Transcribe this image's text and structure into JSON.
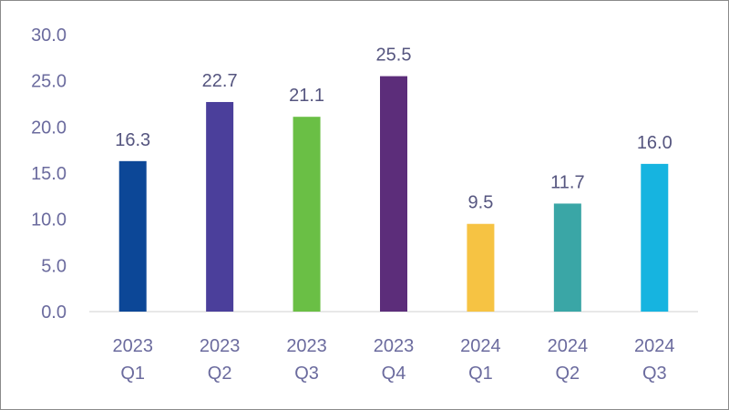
{
  "chart_data": {
    "type": "bar",
    "categories": [
      [
        "2023",
        "Q1"
      ],
      [
        "2023",
        "Q2"
      ],
      [
        "2023",
        "Q3"
      ],
      [
        "2023",
        "Q4"
      ],
      [
        "2024",
        "Q1"
      ],
      [
        "2024",
        "Q2"
      ],
      [
        "2024",
        "Q3"
      ]
    ],
    "values": [
      16.3,
      22.7,
      21.1,
      25.5,
      9.5,
      11.7,
      16.0
    ],
    "value_labels": [
      "16.3",
      "22.7",
      "21.1",
      "25.5",
      "9.5",
      "11.7",
      "16.0"
    ],
    "bar_colors": [
      "#0c4797",
      "#4b3f9b",
      "#6abf45",
      "#5c2d7a",
      "#f6c343",
      "#3aa6a6",
      "#16b4e0"
    ],
    "title": "",
    "xlabel": "",
    "ylabel": "",
    "ylim": [
      0,
      30
    ],
    "yticks": [
      "0.0",
      "5.0",
      "10.0",
      "15.0",
      "20.0",
      "25.0",
      "30.0"
    ],
    "grid": false,
    "legend": "none"
  }
}
